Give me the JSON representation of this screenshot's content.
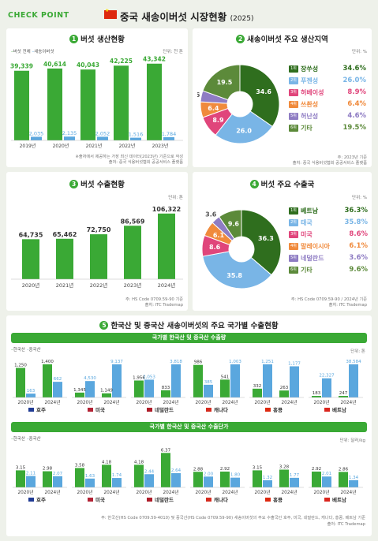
{
  "header": {
    "checkpoint": "CHECK POINT",
    "title": "중국 새송이버섯 시장현황",
    "year": "(2025)"
  },
  "sections": {
    "s1": {
      "num": "1",
      "title": "버섯 생산현황",
      "unit": "단위: 천 톤",
      "legend_a": "버섯 전체",
      "legend_b": "새송이버섯",
      "note1": "※출처에서 제공하는 가장 최신 데이터(2023년) 기준으로 작성",
      "note2": "출처: 중국 식용버섯협회 공공서비스 플랫폼"
    },
    "s2": {
      "num": "2",
      "title": "새송이버섯 주요 생산지역",
      "unit": "단위: %",
      "note1": "주: 2023년 기준",
      "note2": "출처: 중국 식용버섯협회 공공서비스 플랫폼"
    },
    "s3": {
      "num": "3",
      "title": "버섯 수출현황",
      "unit": "단위: 톤",
      "note1": "주: HS Code 0709.59-90 기준",
      "note2": "출처: ITC Trademap"
    },
    "s4": {
      "num": "4",
      "title": "버섯 주요 수출국",
      "unit": "단위: %",
      "note1": "주: HS Code 0709.59-90 / 2024년 기준",
      "note2": "출처: ITC Trademap"
    },
    "s5": {
      "num": "5",
      "title": "한국산 및 중국산 새송이버섯의 주요 국가별 수출현황",
      "bar1": "국가별 한국산 및 중국산 수출량",
      "bar2": "국가별 한국산 및 중국산 수출단가",
      "legend_a": "한국산",
      "legend_b": "중국산",
      "unit1": "단위: 톤",
      "unit2": "단위: 달러/kg",
      "note1": "주: 한국산(HS Code 0709.59-4010) 및 중국산(HS Code 0709.59-90) 새송이버섯의 주요 수출국인 호주, 미국, 네덜란드, 캐나다, 홍콩, 베트남 기준",
      "note2": "출처: ITC Trademap"
    }
  },
  "colors": {
    "green": "#3aa935",
    "blue": "#5aa7de",
    "dark_green": "#2f6e1e",
    "light_blue": "#79b5e6"
  },
  "chart_data": [
    {
      "type": "bar",
      "title": "버섯 생산현황",
      "categories": [
        "2019년",
        "2020년",
        "2021년",
        "2022년",
        "2023년"
      ],
      "series": [
        {
          "name": "버섯 전체",
          "values": [
            39339,
            40614,
            40043,
            42225,
            43342
          ],
          "labels": [
            "39,339",
            "40,614",
            "40,043",
            "42,225",
            "43,342"
          ]
        },
        {
          "name": "새송이버섯",
          "values": [
            2035,
            2135,
            2052,
            1516,
            1784
          ],
          "labels": [
            "2,035",
            "2,135",
            "2,052",
            "1,516",
            "1,784"
          ]
        }
      ],
      "ylim": [
        0,
        50000
      ]
    },
    {
      "type": "pie",
      "title": "새송이버섯 주요 생산지역",
      "slices": [
        {
          "rank": "1위",
          "label": "장쑤성",
          "value": 34.6,
          "value_label": "34.6%",
          "color": "#2f6e1e"
        },
        {
          "rank": "2위",
          "label": "푸젠성",
          "value": 26.0,
          "value_label": "26.0%",
          "color": "#79b5e6"
        },
        {
          "rank": "3위",
          "label": "허베이성",
          "value": 8.9,
          "value_label": "8.9%",
          "color": "#e0457b"
        },
        {
          "rank": "4위",
          "label": "쓰촨성",
          "value": 6.4,
          "value_label": "6.4%",
          "color": "#f08a3c"
        },
        {
          "rank": "5위",
          "label": "허난성",
          "value": 4.6,
          "value_label": "4.6%",
          "color": "#8e7cc3"
        },
        {
          "rank": "6위",
          "label": "기타",
          "value": 19.5,
          "value_label": "19.5%",
          "color": "#5c8a3a"
        }
      ]
    },
    {
      "type": "bar",
      "title": "버섯 수출현황",
      "categories": [
        "2020년",
        "2021년",
        "2022년",
        "2023년",
        "2024년"
      ],
      "values": [
        64735,
        65462,
        72750,
        86569,
        106322
      ],
      "labels": [
        "64,735",
        "65,462",
        "72,750",
        "86,569",
        "106,322"
      ],
      "ylim": [
        0,
        115000
      ]
    },
    {
      "type": "pie",
      "title": "버섯 주요 수출국",
      "slices": [
        {
          "rank": "1위",
          "label": "베트남",
          "value": 36.3,
          "value_label": "36.3%",
          "color": "#2f6e1e"
        },
        {
          "rank": "2위",
          "label": "태국",
          "value": 35.8,
          "value_label": "35.8%",
          "color": "#79b5e6"
        },
        {
          "rank": "3위",
          "label": "미국",
          "value": 8.6,
          "value_label": "8.6%",
          "color": "#e0457b"
        },
        {
          "rank": "4위",
          "label": "말레이시아",
          "value": 6.1,
          "value_label": "6.1%",
          "color": "#f08a3c"
        },
        {
          "rank": "5위",
          "label": "네덜란드",
          "value": 3.6,
          "value_label": "3.6%",
          "color": "#8e7cc3"
        },
        {
          "rank": "6위",
          "label": "기타",
          "value": 9.6,
          "value_label": "9.6%",
          "color": "#5c8a3a"
        }
      ]
    },
    {
      "type": "bar",
      "title": "국가별 한국산 및 중국산 수출량",
      "countries": [
        "호주",
        "미국",
        "네덜란드",
        "캐나다",
        "홍콩",
        "베트남"
      ],
      "years": [
        "2020년",
        "2024년"
      ],
      "series": [
        {
          "name": "한국산",
          "values": [
            [
              1250,
              1400
            ],
            [
              1345,
              1149
            ],
            [
              1956,
              833
            ],
            [
              986,
              541
            ],
            [
              332,
              263
            ],
            [
              183,
              247
            ]
          ]
        },
        {
          "name": "중국산",
          "values": [
            [
              163,
              662
            ],
            [
              4530,
              9137
            ],
            [
              2053,
              3818
            ],
            [
              385,
              1003
            ],
            [
              1251,
              1177
            ],
            [
              22327,
              38584
            ]
          ]
        }
      ],
      "labels_a": [
        [
          "1,250",
          "1,400"
        ],
        [
          "1,345",
          "1,149"
        ],
        [
          "1,956",
          "833"
        ],
        [
          "986",
          "541"
        ],
        [
          "332",
          "263"
        ],
        [
          "183",
          "247"
        ]
      ],
      "labels_b": [
        [
          "163",
          "662"
        ],
        [
          "4,530",
          "9,137"
        ],
        [
          "2,053",
          "3,818"
        ],
        [
          "385",
          "1,003"
        ],
        [
          "1,251",
          "1,177"
        ],
        [
          "22,327",
          "38,584"
        ]
      ]
    },
    {
      "type": "bar",
      "title": "국가별 한국산 및 중국산 수출단가",
      "countries": [
        "호주",
        "미국",
        "네덜란드",
        "캐나다",
        "홍콩",
        "베트남"
      ],
      "years": [
        "2020년",
        "2024년"
      ],
      "series": [
        {
          "name": "한국산",
          "values": [
            [
              3.15,
              2.98
            ],
            [
              3.58,
              4.18
            ],
            [
              4.18,
              6.37
            ],
            [
              2.88,
              2.92
            ],
            [
              3.15,
              3.28
            ],
            [
              2.92,
              2.86
            ]
          ]
        },
        {
          "name": "중국산",
          "values": [
            [
              2.11,
              2.07
            ],
            [
              1.63,
              1.74
            ],
            [
              2.44,
              2.64
            ],
            [
              2.0,
              1.8
            ],
            [
              1.32,
              1.77
            ],
            [
              2.01,
              1.34
            ]
          ]
        }
      ],
      "labels_a": [
        [
          "3.15",
          "2.98"
        ],
        [
          "3.58",
          "4.18"
        ],
        [
          "4.18",
          "6.37"
        ],
        [
          "2.88",
          "2.92"
        ],
        [
          "3.15",
          "3.28"
        ],
        [
          "2.92",
          "2.86"
        ]
      ],
      "labels_b": [
        [
          "2.11",
          "2.07"
        ],
        [
          "1.63",
          "1.74"
        ],
        [
          "2.44",
          "2.64"
        ],
        [
          "2.00",
          "1.80"
        ],
        [
          "1.32",
          "1.77"
        ],
        [
          "2.01",
          "1.34"
        ]
      ],
      "ylim": [
        0,
        7
      ]
    }
  ]
}
